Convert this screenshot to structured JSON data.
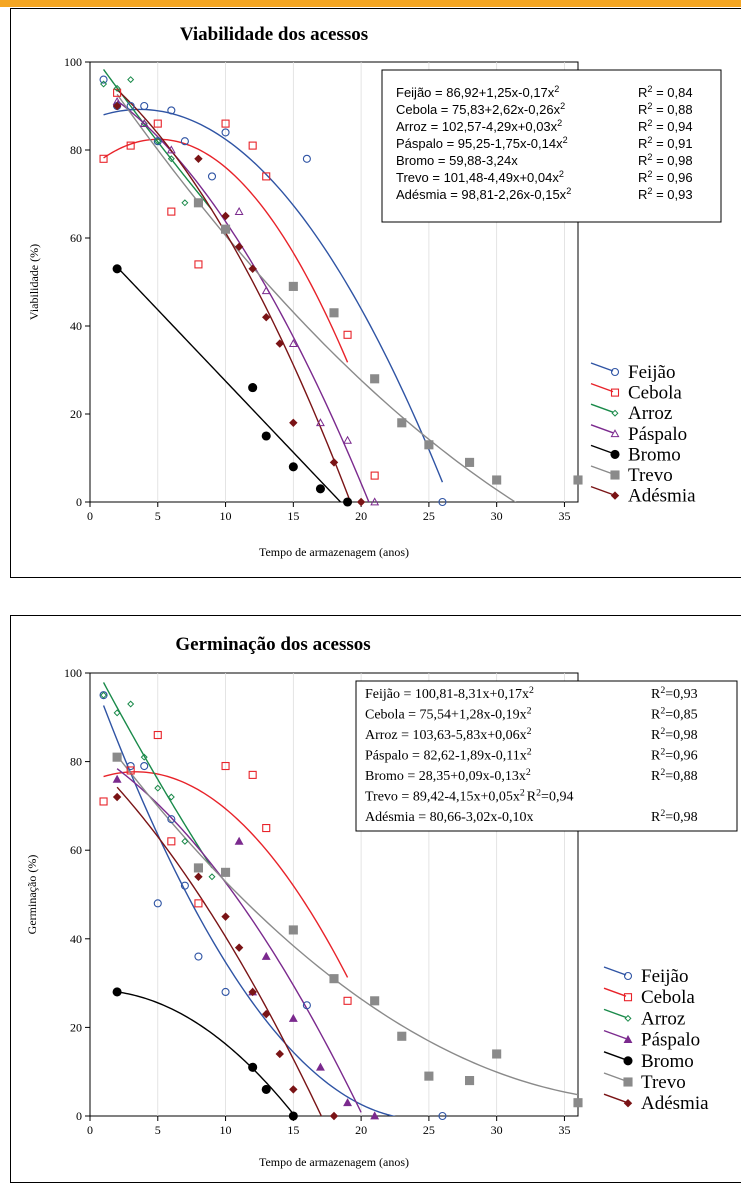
{
  "colors": {
    "Feijão": "#2f54a4",
    "Cebola": "#e8232a",
    "Arroz": "#1a8a4a",
    "Páspalo": "#7b2a8e",
    "Bromo": "#000000",
    "Trevo": "#8a8a8a",
    "Adésmia": "#7a1416",
    "top_bar": "#f5a623"
  },
  "chart_data": [
    {
      "type": "scatter",
      "title": "Viabilidade dos acessos",
      "xlabel": "Tempo de armazenagem (anos)",
      "ylabel": "Viabilidade (%)",
      "xlim": [
        0,
        36
      ],
      "ylim": [
        0,
        100
      ],
      "xticks": [
        "0",
        "5",
        "10",
        "15",
        "20",
        "25",
        "30",
        "35"
      ],
      "yticks": [
        "0",
        "20",
        "40",
        "60",
        "80",
        "100"
      ],
      "grid": false,
      "legend_position": "bottom-right",
      "equations": [
        {
          "text": "Feijão = 86,92+1,25x-0,17x",
          "sup": "2",
          "r2": "R",
          "r2sup": "2",
          "r2val": " = 0,84"
        },
        {
          "text": "Cebola = 75,83+2,62x-0,26x",
          "sup": "2",
          "r2": "R",
          "r2sup": "2",
          "r2val": " = 0,88"
        },
        {
          "text": "Arroz = 102,57-4,29x+0,03x",
          "sup": "2",
          "r2": "R",
          "r2sup": "2",
          "r2val": " = 0,94"
        },
        {
          "text": "Páspalo = 95,25-1,75x-0,14x",
          "sup": "2",
          "r2": "R",
          "r2sup": "2",
          "r2val": " = 0,91"
        },
        {
          "text": "Bromo = 59,88-3,24x",
          "sup": "",
          "r2": "R",
          "r2sup": "2",
          "r2val": " = 0,98"
        },
        {
          "text": "Trevo = 101,48-4,49x+0,04x",
          "sup": "2",
          "r2": "R",
          "r2sup": "2",
          "r2val": " = 0,96"
        },
        {
          "text": "Adésmia = 98,81-2,26x-0,15x",
          "sup": "2",
          "r2": "R",
          "r2sup": "2",
          "r2val": " = 0,93"
        }
      ],
      "series": [
        {
          "name": "Feijão",
          "marker": "circle-open",
          "coef": [
            86.92,
            1.25,
            -0.17
          ],
          "fit_range": [
            1,
            26
          ],
          "points": [
            [
              1,
              96
            ],
            [
              2,
              90
            ],
            [
              3,
              90
            ],
            [
              4,
              90
            ],
            [
              5,
              82
            ],
            [
              6,
              89
            ],
            [
              7,
              82
            ],
            [
              9,
              74
            ],
            [
              10,
              84
            ],
            [
              16,
              78
            ],
            [
              26,
              0
            ]
          ]
        },
        {
          "name": "Cebola",
          "marker": "square-open",
          "coef": [
            75.83,
            2.62,
            -0.26
          ],
          "fit_range": [
            1,
            19
          ],
          "points": [
            [
              1,
              78
            ],
            [
              2,
              93
            ],
            [
              3,
              81
            ],
            [
              5,
              86
            ],
            [
              6,
              66
            ],
            [
              8,
              54
            ],
            [
              10,
              86
            ],
            [
              12,
              81
            ],
            [
              13,
              74
            ],
            [
              19,
              38
            ],
            [
              21,
              6
            ]
          ]
        },
        {
          "name": "Arroz",
          "marker": "diamond-open",
          "coef": [
            102.57,
            -4.29,
            0.03
          ],
          "fit_range": [
            1,
            9
          ],
          "points": [
            [
              1,
              95
            ],
            [
              2,
              94
            ],
            [
              3,
              96
            ],
            [
              4,
              86
            ],
            [
              5,
              82
            ],
            [
              6,
              78
            ],
            [
              7,
              68
            ],
            [
              10,
              62
            ]
          ]
        },
        {
          "name": "Páspalo",
          "marker": "triangle-open",
          "coef": [
            95.25,
            -1.75,
            -0.14
          ],
          "fit_range": [
            2,
            21
          ],
          "points": [
            [
              2,
              91
            ],
            [
              4,
              86
            ],
            [
              6,
              80
            ],
            [
              11,
              66
            ],
            [
              13,
              48
            ],
            [
              15,
              36
            ],
            [
              17,
              18
            ],
            [
              19,
              14
            ],
            [
              21,
              0
            ]
          ]
        },
        {
          "name": "Bromo",
          "marker": "circle-filled",
          "coef": [
            59.88,
            -3.24,
            0
          ],
          "fit_range": [
            2,
            18.5
          ],
          "points": [
            [
              2,
              53
            ],
            [
              12,
              26
            ],
            [
              13,
              15
            ],
            [
              15,
              8
            ],
            [
              17,
              3
            ],
            [
              19,
              0
            ]
          ]
        },
        {
          "name": "Trevo",
          "marker": "square-filled",
          "coef": [
            101.48,
            -4.49,
            0.04
          ],
          "fit_range": [
            2,
            35
          ],
          "points": [
            [
              8,
              68
            ],
            [
              10,
              62
            ],
            [
              15,
              49
            ],
            [
              18,
              43
            ],
            [
              21,
              28
            ],
            [
              23,
              18
            ],
            [
              25,
              13
            ],
            [
              28,
              9
            ],
            [
              30,
              5
            ],
            [
              36,
              5
            ]
          ]
        },
        {
          "name": "Adésmia",
          "marker": "diamond-filled",
          "coef": [
            98.81,
            -2.26,
            -0.15
          ],
          "fit_range": [
            2,
            19.5
          ],
          "points": [
            [
              2,
              90
            ],
            [
              8,
              78
            ],
            [
              10,
              65
            ],
            [
              11,
              58
            ],
            [
              12,
              53
            ],
            [
              13,
              42
            ],
            [
              14,
              36
            ],
            [
              15,
              18
            ],
            [
              18,
              9
            ],
            [
              20,
              0
            ]
          ]
        }
      ]
    },
    {
      "type": "scatter",
      "title": "Germinação dos acessos",
      "xlabel": "Tempo de armazenagem (anos)",
      "ylabel": "Germinação (%)",
      "xlim": [
        0,
        36
      ],
      "ylim": [
        0,
        100
      ],
      "xticks": [
        "0",
        "5",
        "10",
        "15",
        "20",
        "25",
        "30",
        "35"
      ],
      "yticks": [
        "0",
        "20",
        "40",
        "60",
        "80",
        "100"
      ],
      "grid": false,
      "legend_position": "bottom-right",
      "equations": [
        {
          "text": "Feijão = 100,81-8,31x+0,17x",
          "sup": "2",
          "r2": "R",
          "r2sup": "2",
          "r2val": "=0,93"
        },
        {
          "text": "Cebola = 75,54+1,28x-0,19x",
          "sup": "2",
          "r2": "R",
          "r2sup": "2",
          "r2val": "=0,85"
        },
        {
          "text": "Arroz = 103,63-5,83x+0,06x",
          "sup": "2",
          "r2": "R",
          "r2sup": "2",
          "r2val": "=0,98"
        },
        {
          "text": "Páspalo = 82,62-1,89x-0,11x",
          "sup": "2",
          "r2": "R",
          "r2sup": "2",
          "r2val": "=0,96"
        },
        {
          "text": "Bromo = 28,35+0,09x-0,13x",
          "sup": "2",
          "r2": "R",
          "r2sup": "2",
          "r2val": "=0,88"
        },
        {
          "text": "Trevo = 89,42-4,15x+0,05x",
          "sup": "2",
          "r2": " R",
          "r2sup": "2",
          "r2val": "=0,94",
          "inline": true
        },
        {
          "text": "Adésmia = 80,66-3,02x-0,10x",
          "sup": "",
          "r2": "R",
          "r2sup": "2",
          "r2val": "=0,98"
        }
      ],
      "series": [
        {
          "name": "Feijão",
          "marker": "circle-open",
          "coef": [
            100.81,
            -8.31,
            0.17
          ],
          "fit_range": [
            1,
            26
          ],
          "points": [
            [
              1,
              95
            ],
            [
              3,
              79
            ],
            [
              4,
              79
            ],
            [
              5,
              48
            ],
            [
              6,
              67
            ],
            [
              7,
              52
            ],
            [
              8,
              36
            ],
            [
              10,
              28
            ],
            [
              16,
              25
            ],
            [
              26,
              0
            ]
          ]
        },
        {
          "name": "Cebola",
          "marker": "square-open",
          "coef": [
            75.54,
            1.28,
            -0.19
          ],
          "fit_range": [
            1,
            19
          ],
          "points": [
            [
              1,
              71
            ],
            [
              3,
              78
            ],
            [
              5,
              86
            ],
            [
              6,
              62
            ],
            [
              8,
              48
            ],
            [
              10,
              79
            ],
            [
              12,
              77
            ],
            [
              13,
              65
            ],
            [
              19,
              26
            ]
          ]
        },
        {
          "name": "Arroz",
          "marker": "diamond-open",
          "coef": [
            103.63,
            -5.83,
            0.06
          ],
          "fit_range": [
            1,
            9
          ],
          "points": [
            [
              1,
              95
            ],
            [
              2,
              91
            ],
            [
              3,
              93
            ],
            [
              4,
              81
            ],
            [
              5,
              74
            ],
            [
              6,
              72
            ],
            [
              7,
              62
            ],
            [
              9,
              54
            ]
          ]
        },
        {
          "name": "Páspalo",
          "marker": "triangle-filled",
          "coef": [
            82.62,
            -1.89,
            -0.11
          ],
          "fit_range": [
            2,
            20
          ],
          "points": [
            [
              2,
              76
            ],
            [
              11,
              62
            ],
            [
              12,
              28
            ],
            [
              13,
              36
            ],
            [
              15,
              22
            ],
            [
              17,
              11
            ],
            [
              19,
              3
            ],
            [
              21,
              0
            ]
          ]
        },
        {
          "name": "Bromo",
          "marker": "circle-filled",
          "coef": [
            28.35,
            0.09,
            -0.13
          ],
          "fit_range": [
            2,
            15
          ],
          "points": [
            [
              2,
              28
            ],
            [
              12,
              11
            ],
            [
              13,
              6
            ],
            [
              15,
              0
            ]
          ]
        },
        {
          "name": "Trevo",
          "marker": "square-filled",
          "coef": [
            89.42,
            -4.15,
            0.05
          ],
          "fit_range": [
            2,
            36
          ],
          "points": [
            [
              2,
              81
            ],
            [
              8,
              56
            ],
            [
              10,
              55
            ],
            [
              15,
              42
            ],
            [
              18,
              31
            ],
            [
              21,
              26
            ],
            [
              23,
              18
            ],
            [
              25,
              9
            ],
            [
              28,
              8
            ],
            [
              30,
              14
            ],
            [
              36,
              3
            ]
          ]
        },
        {
          "name": "Adésmia",
          "marker": "diamond-filled",
          "coef": [
            80.66,
            -3.02,
            -0.1
          ],
          "fit_range": [
            2,
            17.5
          ],
          "points": [
            [
              2,
              72
            ],
            [
              8,
              54
            ],
            [
              10,
              45
            ],
            [
              11,
              38
            ],
            [
              12,
              28
            ],
            [
              13,
              23
            ],
            [
              14,
              14
            ],
            [
              15,
              6
            ],
            [
              18,
              0
            ]
          ]
        }
      ]
    }
  ]
}
